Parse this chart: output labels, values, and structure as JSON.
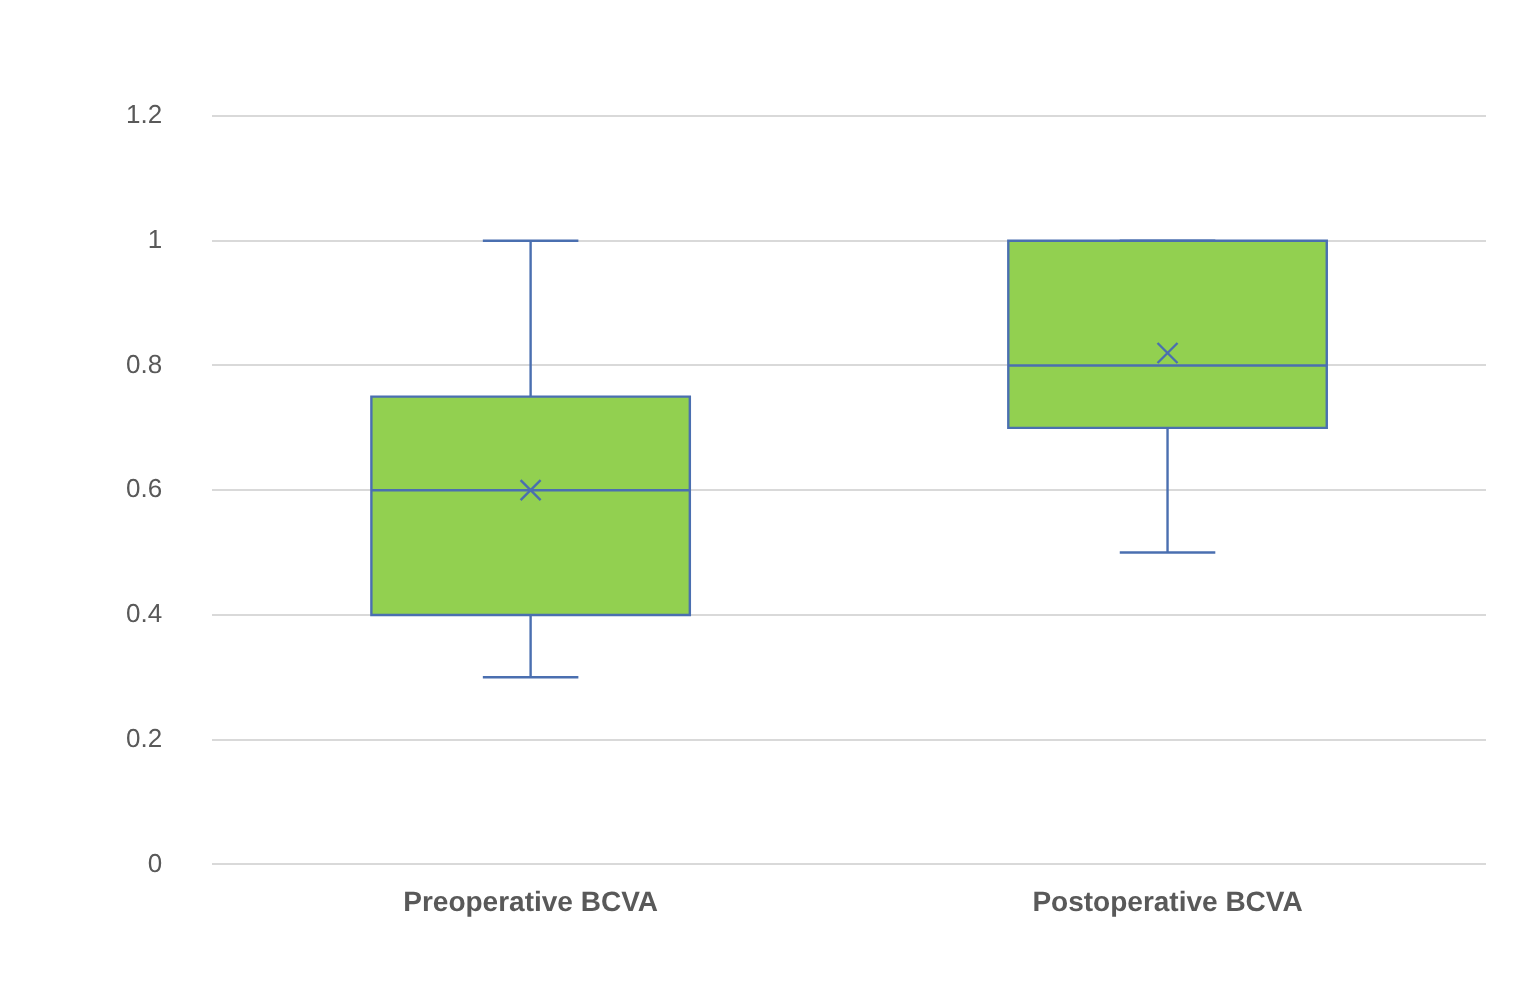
{
  "chart_data": {
    "type": "box",
    "categories": [
      "Preoperative BCVA",
      "Postoperative BCVA"
    ],
    "boxes": [
      {
        "low": 0.3,
        "q1": 0.4,
        "median": 0.6,
        "q3": 0.75,
        "high": 1.0,
        "mean": 0.6
      },
      {
        "low": 0.5,
        "q1": 0.7,
        "median": 0.8,
        "q3": 1.0,
        "high": 1.0,
        "mean": 0.82
      }
    ],
    "color": "#92d050",
    "ylim": [
      0,
      1.2
    ],
    "yticks": [
      0,
      0.2,
      0.4,
      0.6,
      0.8,
      1,
      1.2
    ],
    "grid": "y",
    "legend": false
  }
}
